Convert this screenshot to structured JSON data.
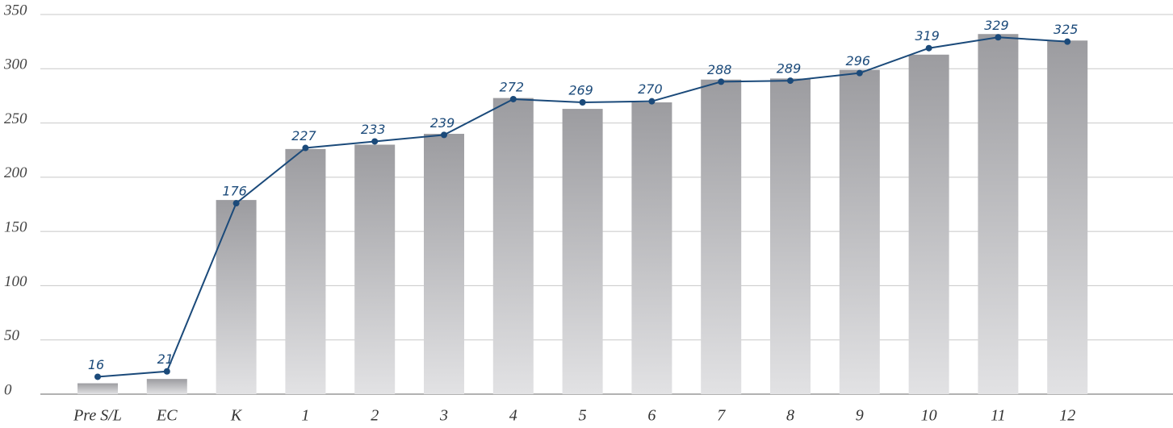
{
  "chart_data": {
    "type": "bar",
    "categories": [
      "Pre S/L",
      "EC",
      "K",
      "1",
      "2",
      "3",
      "4",
      "5",
      "6",
      "7",
      "8",
      "9",
      "10",
      "11",
      "12"
    ],
    "series": [
      {
        "type": "bar",
        "color": "#a3a3a6",
        "values": [
          10,
          14,
          179,
          226,
          230,
          240,
          273,
          263,
          269,
          290,
          291,
          299,
          313,
          332,
          326
        ]
      },
      {
        "type": "line",
        "color": "#1b4a7a",
        "values": [
          16,
          21,
          176,
          227,
          233,
          239,
          272,
          269,
          270,
          288,
          289,
          296,
          319,
          329,
          325
        ]
      }
    ],
    "ylim": [
      0,
      350
    ],
    "yticks": [
      0,
      50,
      100,
      150,
      200,
      250,
      300,
      350
    ],
    "grid": true
  }
}
